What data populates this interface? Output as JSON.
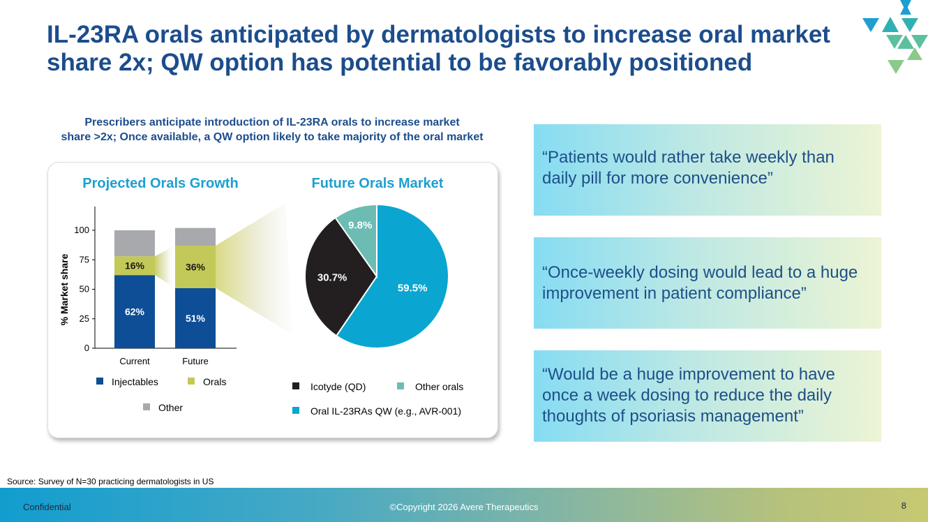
{
  "slide": {
    "title_lines": [
      "IL-23RA orals anticipated by dermatologists to increase oral market",
      "share 2x; QW option has potential to be favorably positioned"
    ],
    "subtitle_lines": [
      "Prescribers anticipate introduction of IL-23RA orals to increase market",
      "share >2x; Once available, a QW option likely to take majority of the oral market"
    ],
    "quotes": [
      "“Patients would rather take weekly than daily pill for more convenience”",
      "“Once-weekly dosing would lead to a huge improvement in patient compliance”",
      "“Would be a huge improvement to have once a week dosing to reduce the daily thoughts of psoriasis management”"
    ],
    "source": "Source: Survey of N=30 practicing dermatologists in US",
    "footer": {
      "confidential": "Confidential",
      "copyright": "©Copyright 2026 Avere Therapeutics",
      "page_number": "8"
    }
  },
  "colors": {
    "title": "#1c4d8c",
    "chart_title": "#1e9fd0",
    "injectables": "#0e4e96",
    "orals": "#c3c958",
    "other": "#a7a9ac",
    "icotyde": "#231f20",
    "other_orals": "#6cbcb3",
    "oral_il23ra_qw": "#0aa6d1",
    "logo": [
      "#1e9fd0",
      "#31b0b3",
      "#5cc0a0",
      "#8cc98a"
    ]
  },
  "chart_data": [
    {
      "type": "bar",
      "stacked": true,
      "title": "Projected Orals Growth",
      "ylabel": "% Market share",
      "categories": [
        "Current",
        "Future"
      ],
      "ylim": [
        0,
        100
      ],
      "yticks": [
        0,
        25,
        50,
        75,
        100
      ],
      "series": [
        {
          "name": "Injectables",
          "values": [
            62,
            51
          ],
          "labels": [
            "62%",
            "51%"
          ]
        },
        {
          "name": "Orals",
          "values": [
            16,
            36
          ],
          "labels": [
            "16%",
            "36%"
          ]
        },
        {
          "name": "Other",
          "values": [
            22,
            15
          ],
          "labels": [
            "",
            ""
          ]
        }
      ],
      "legend": "bottom"
    },
    {
      "type": "pie",
      "title": "Future Orals Market",
      "slices": [
        {
          "name": "Oral IL-23RAs QW (e.g., AVR-001)",
          "value": 59.5,
          "label": "59.5%"
        },
        {
          "name": "Icotyde (QD)",
          "value": 30.7,
          "label": "30.7%"
        },
        {
          "name": "Other orals",
          "value": 9.8,
          "label": "9.8%"
        }
      ],
      "legend_order": [
        "Icotyde (QD)",
        "Other orals",
        "Oral IL-23RAs QW (e.g., AVR-001)"
      ],
      "legend": "bottom"
    }
  ]
}
